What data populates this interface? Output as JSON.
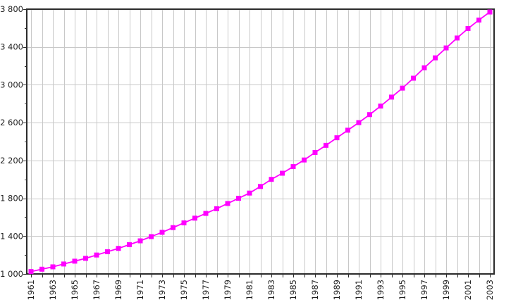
{
  "page": {
    "background": "#ffffff",
    "description": "Line chart of a population time series (in thousands), yearly data points 1961-2003"
  },
  "chart_data": {
    "type": "line",
    "title": "",
    "xlabel": "",
    "ylabel": "",
    "legend_position": "none",
    "grid": true,
    "ylim": [
      1000,
      3800
    ],
    "xlim": [
      1961,
      2003
    ],
    "x": [
      1961,
      1962,
      1963,
      1964,
      1965,
      1966,
      1967,
      1968,
      1969,
      1970,
      1971,
      1972,
      1973,
      1974,
      1975,
      1976,
      1977,
      1978,
      1979,
      1980,
      1981,
      1982,
      1983,
      1984,
      1985,
      1986,
      1987,
      1988,
      1989,
      1990,
      1991,
      1992,
      1993,
      1994,
      1995,
      1996,
      1997,
      1998,
      1999,
      2000,
      2001,
      2002,
      2003
    ],
    "series": [
      {
        "name": "population-thousands",
        "marker": "square",
        "values": [
          1025,
          1050,
          1075,
          1105,
          1135,
          1165,
          1200,
          1235,
          1270,
          1310,
          1350,
          1395,
          1440,
          1490,
          1540,
          1590,
          1640,
          1690,
          1745,
          1800,
          1855,
          1925,
          2000,
          2065,
          2135,
          2205,
          2285,
          2360,
          2440,
          2520,
          2600,
          2685,
          2775,
          2870,
          2965,
          3070,
          3180,
          3285,
          3390,
          3495,
          3595,
          3685,
          3770
        ]
      }
    ],
    "x_tick_labels": [
      "1961",
      "1963",
      "1965",
      "1967",
      "1969",
      "1971",
      "1973",
      "1975",
      "1977",
      "1979",
      "1981",
      "1983",
      "1985",
      "1987",
      "1989",
      "1991",
      "1993",
      "1995",
      "1997",
      "1999",
      "2001",
      "2003"
    ],
    "x_tick_years": [
      1961,
      1963,
      1965,
      1967,
      1969,
      1971,
      1973,
      1975,
      1977,
      1979,
      1981,
      1983,
      1985,
      1987,
      1989,
      1991,
      1993,
      1995,
      1997,
      1999,
      2001,
      2003
    ],
    "y_major_ticks": [
      1000,
      1400,
      1800,
      2200,
      2600,
      3000,
      3400,
      3800
    ],
    "y_tick_labels": [
      "1 000",
      "1 400",
      "1 800",
      "2 200",
      "2 600",
      "3 000",
      "3 400",
      "3 800"
    ],
    "y_minor_tick_step": 200,
    "x_gridline_step_years": 1,
    "colors": {
      "series": "#ff00ff",
      "grid": "#c8c8c8",
      "frame": "#2b2b2b",
      "tick": "#2b2b2b",
      "text": "#1f1f1f",
      "background": "#ffffff"
    }
  }
}
